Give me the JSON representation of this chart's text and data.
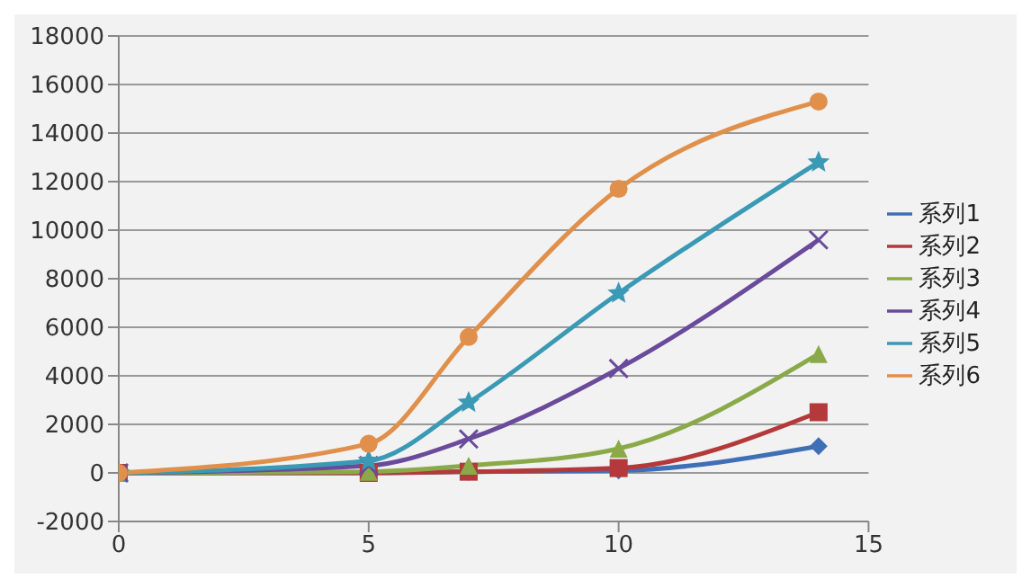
{
  "chart_data": {
    "type": "line",
    "x": [
      0,
      5,
      7,
      10,
      14
    ],
    "series": [
      {
        "name": "系列1",
        "color": "#3f6fb5",
        "marker": "diamond",
        "values": [
          0,
          0,
          50,
          100,
          1100
        ]
      },
      {
        "name": "系列2",
        "color": "#b5383a",
        "marker": "square",
        "values": [
          0,
          0,
          50,
          200,
          2500
        ]
      },
      {
        "name": "系列3",
        "color": "#8aaa4a",
        "marker": "triangle",
        "values": [
          0,
          50,
          300,
          1000,
          4900
        ]
      },
      {
        "name": "系列4",
        "color": "#6a4a9a",
        "marker": "cross",
        "values": [
          0,
          300,
          1400,
          4300,
          9600
        ]
      },
      {
        "name": "系列5",
        "color": "#3a9ab5",
        "marker": "star",
        "values": [
          0,
          500,
          2900,
          7400,
          12800
        ]
      },
      {
        "name": "系列6",
        "color": "#e0904a",
        "marker": "circle",
        "values": [
          0,
          1200,
          5600,
          11700,
          15300
        ]
      }
    ],
    "xlim": [
      0,
      15
    ],
    "xticks": [
      0,
      5,
      10,
      15
    ],
    "ylim": [
      -2000,
      18000
    ],
    "yticks": [
      -2000,
      0,
      2000,
      4000,
      6000,
      8000,
      10000,
      12000,
      14000,
      16000,
      18000
    ],
    "grid": "y",
    "legend": "right"
  }
}
